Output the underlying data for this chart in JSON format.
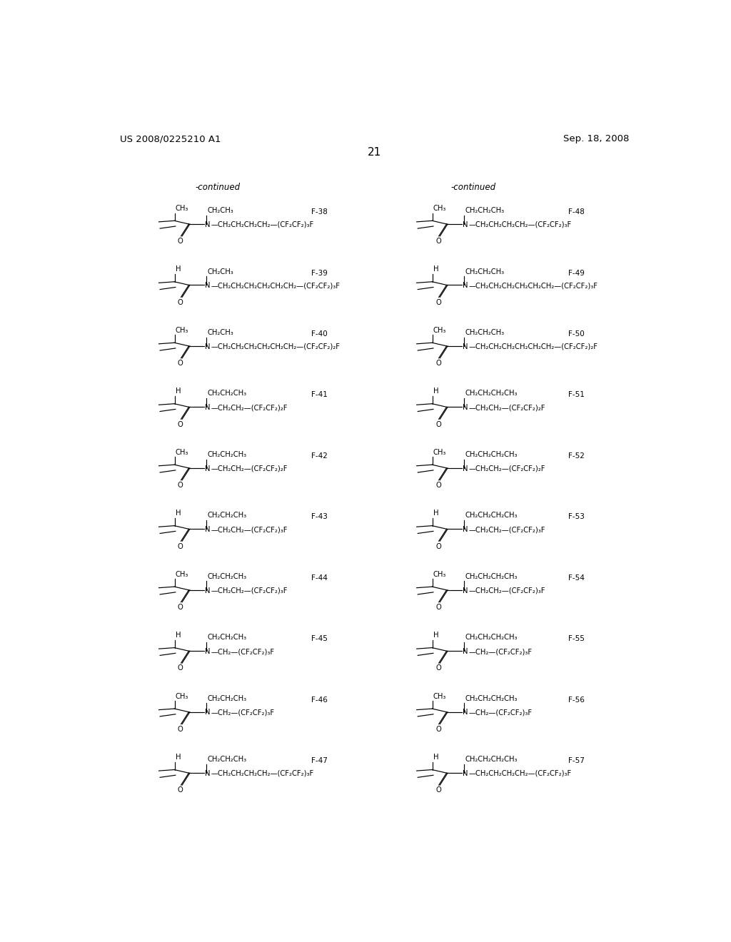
{
  "page_num": "21",
  "patent_left": "US 2008/0225210 A1",
  "patent_right": "Sep. 18, 2008",
  "continued_left": "-continued",
  "continued_right": "-continued",
  "bg_color": "#ffffff",
  "text_color": "#000000",
  "left_compounds": [
    {
      "id": "F-38",
      "r1": "CH₃",
      "r2": "CH₂CH₃",
      "chain": "—CH₂CH₂CH₂CH₂—(CF₂CF₂)₃F"
    },
    {
      "id": "F-39",
      "r1": "H",
      "r2": "CH₂CH₃",
      "chain": "—CH₂CH₂CH₂CH₂CH₂CH₂—(CF₂CF₂)₃F"
    },
    {
      "id": "F-40",
      "r1": "CH₃",
      "r2": "CH₂CH₃",
      "chain": "—CH₂CH₂CH₂CH₂CH₂CH₂—(CF₂CF₂)₂F"
    },
    {
      "id": "F-41",
      "r1": "H",
      "r2": "CH₂CH₂CH₃",
      "chain": "—CH₂CH₂—(CF₂CF₂)₂F"
    },
    {
      "id": "F-42",
      "r1": "CH₃",
      "r2": "CH₂CH₂CH₃",
      "chain": "—CH₂CH₂—(CF₂CF₂)₂F"
    },
    {
      "id": "F-43",
      "r1": "H",
      "r2": "CH₂CH₂CH₃",
      "chain": "—CH₂CH₂—(CF₂CF₂)₃F"
    },
    {
      "id": "F-44",
      "r1": "CH₃",
      "r2": "CH₂CH₂CH₃",
      "chain": "—CH₂CH₂—(CF₂CF₂)₃F"
    },
    {
      "id": "F-45",
      "r1": "H",
      "r2": "CH₂CH₂CH₃",
      "chain": "—CH₂—(CF₂CF₂)₃F"
    },
    {
      "id": "F-46",
      "r1": "CH₃",
      "r2": "CH₂CH₂CH₃",
      "chain": "—CH₂—(CF₂CF₂)₃F"
    },
    {
      "id": "F-47",
      "r1": "H",
      "r2": "CH₂CH₂CH₃",
      "chain": "—CH₂CH₂CH₂CH₂—(CF₂CF₂)₃F"
    }
  ],
  "right_compounds": [
    {
      "id": "F-48",
      "r1": "CH₃",
      "r2": "CH₂CH₂CH₃",
      "chain": "—CH₂CH₂CH₂CH₂—(CF₂CF₂)₃F"
    },
    {
      "id": "F-49",
      "r1": "H",
      "r2": "CH₂CH₂CH₃",
      "chain": "—CH₂CH₂CH₂CH₂CH₂CH₂—(CF₂CF₂)₃F"
    },
    {
      "id": "F-50",
      "r1": "CH₃",
      "r2": "CH₂CH₂CH₃",
      "chain": "—CH₂CH₂CH₂CH₂CH₂CH₂—(CF₂CF₂)₂F"
    },
    {
      "id": "F-51",
      "r1": "H",
      "r2": "CH₂CH₂CH₂CH₃",
      "chain": "—CH₂CH₂—(CF₂CF₂)₂F"
    },
    {
      "id": "F-52",
      "r1": "CH₃",
      "r2": "CH₂CH₂CH₂CH₃",
      "chain": "—CH₂CH₂—(CF₂CF₂)₂F"
    },
    {
      "id": "F-53",
      "r1": "H",
      "r2": "CH₂CH₂CH₂CH₃",
      "chain": "—CH₂CH₂—(CF₂CF₂)₃F"
    },
    {
      "id": "F-54",
      "r1": "CH₃",
      "r2": "CH₂CH₂CH₂CH₃",
      "chain": "—CH₂CH₂—(CF₂CF₂)₃F"
    },
    {
      "id": "F-55",
      "r1": "H",
      "r2": "CH₂CH₂CH₂CH₃",
      "chain": "—CH₂—(CF₂CF₂)₃F"
    },
    {
      "id": "F-56",
      "r1": "CH₃",
      "r2": "CH₂CH₂CH₂CH₃",
      "chain": "—CH₂—(CF₂CF₂)₃F"
    },
    {
      "id": "F-57",
      "r1": "H",
      "r2": "CH₂CH₂CH₂CH₃",
      "chain": "—CH₂CH₂CH₂CH₂—(CF₂CF₂)₃F"
    }
  ]
}
